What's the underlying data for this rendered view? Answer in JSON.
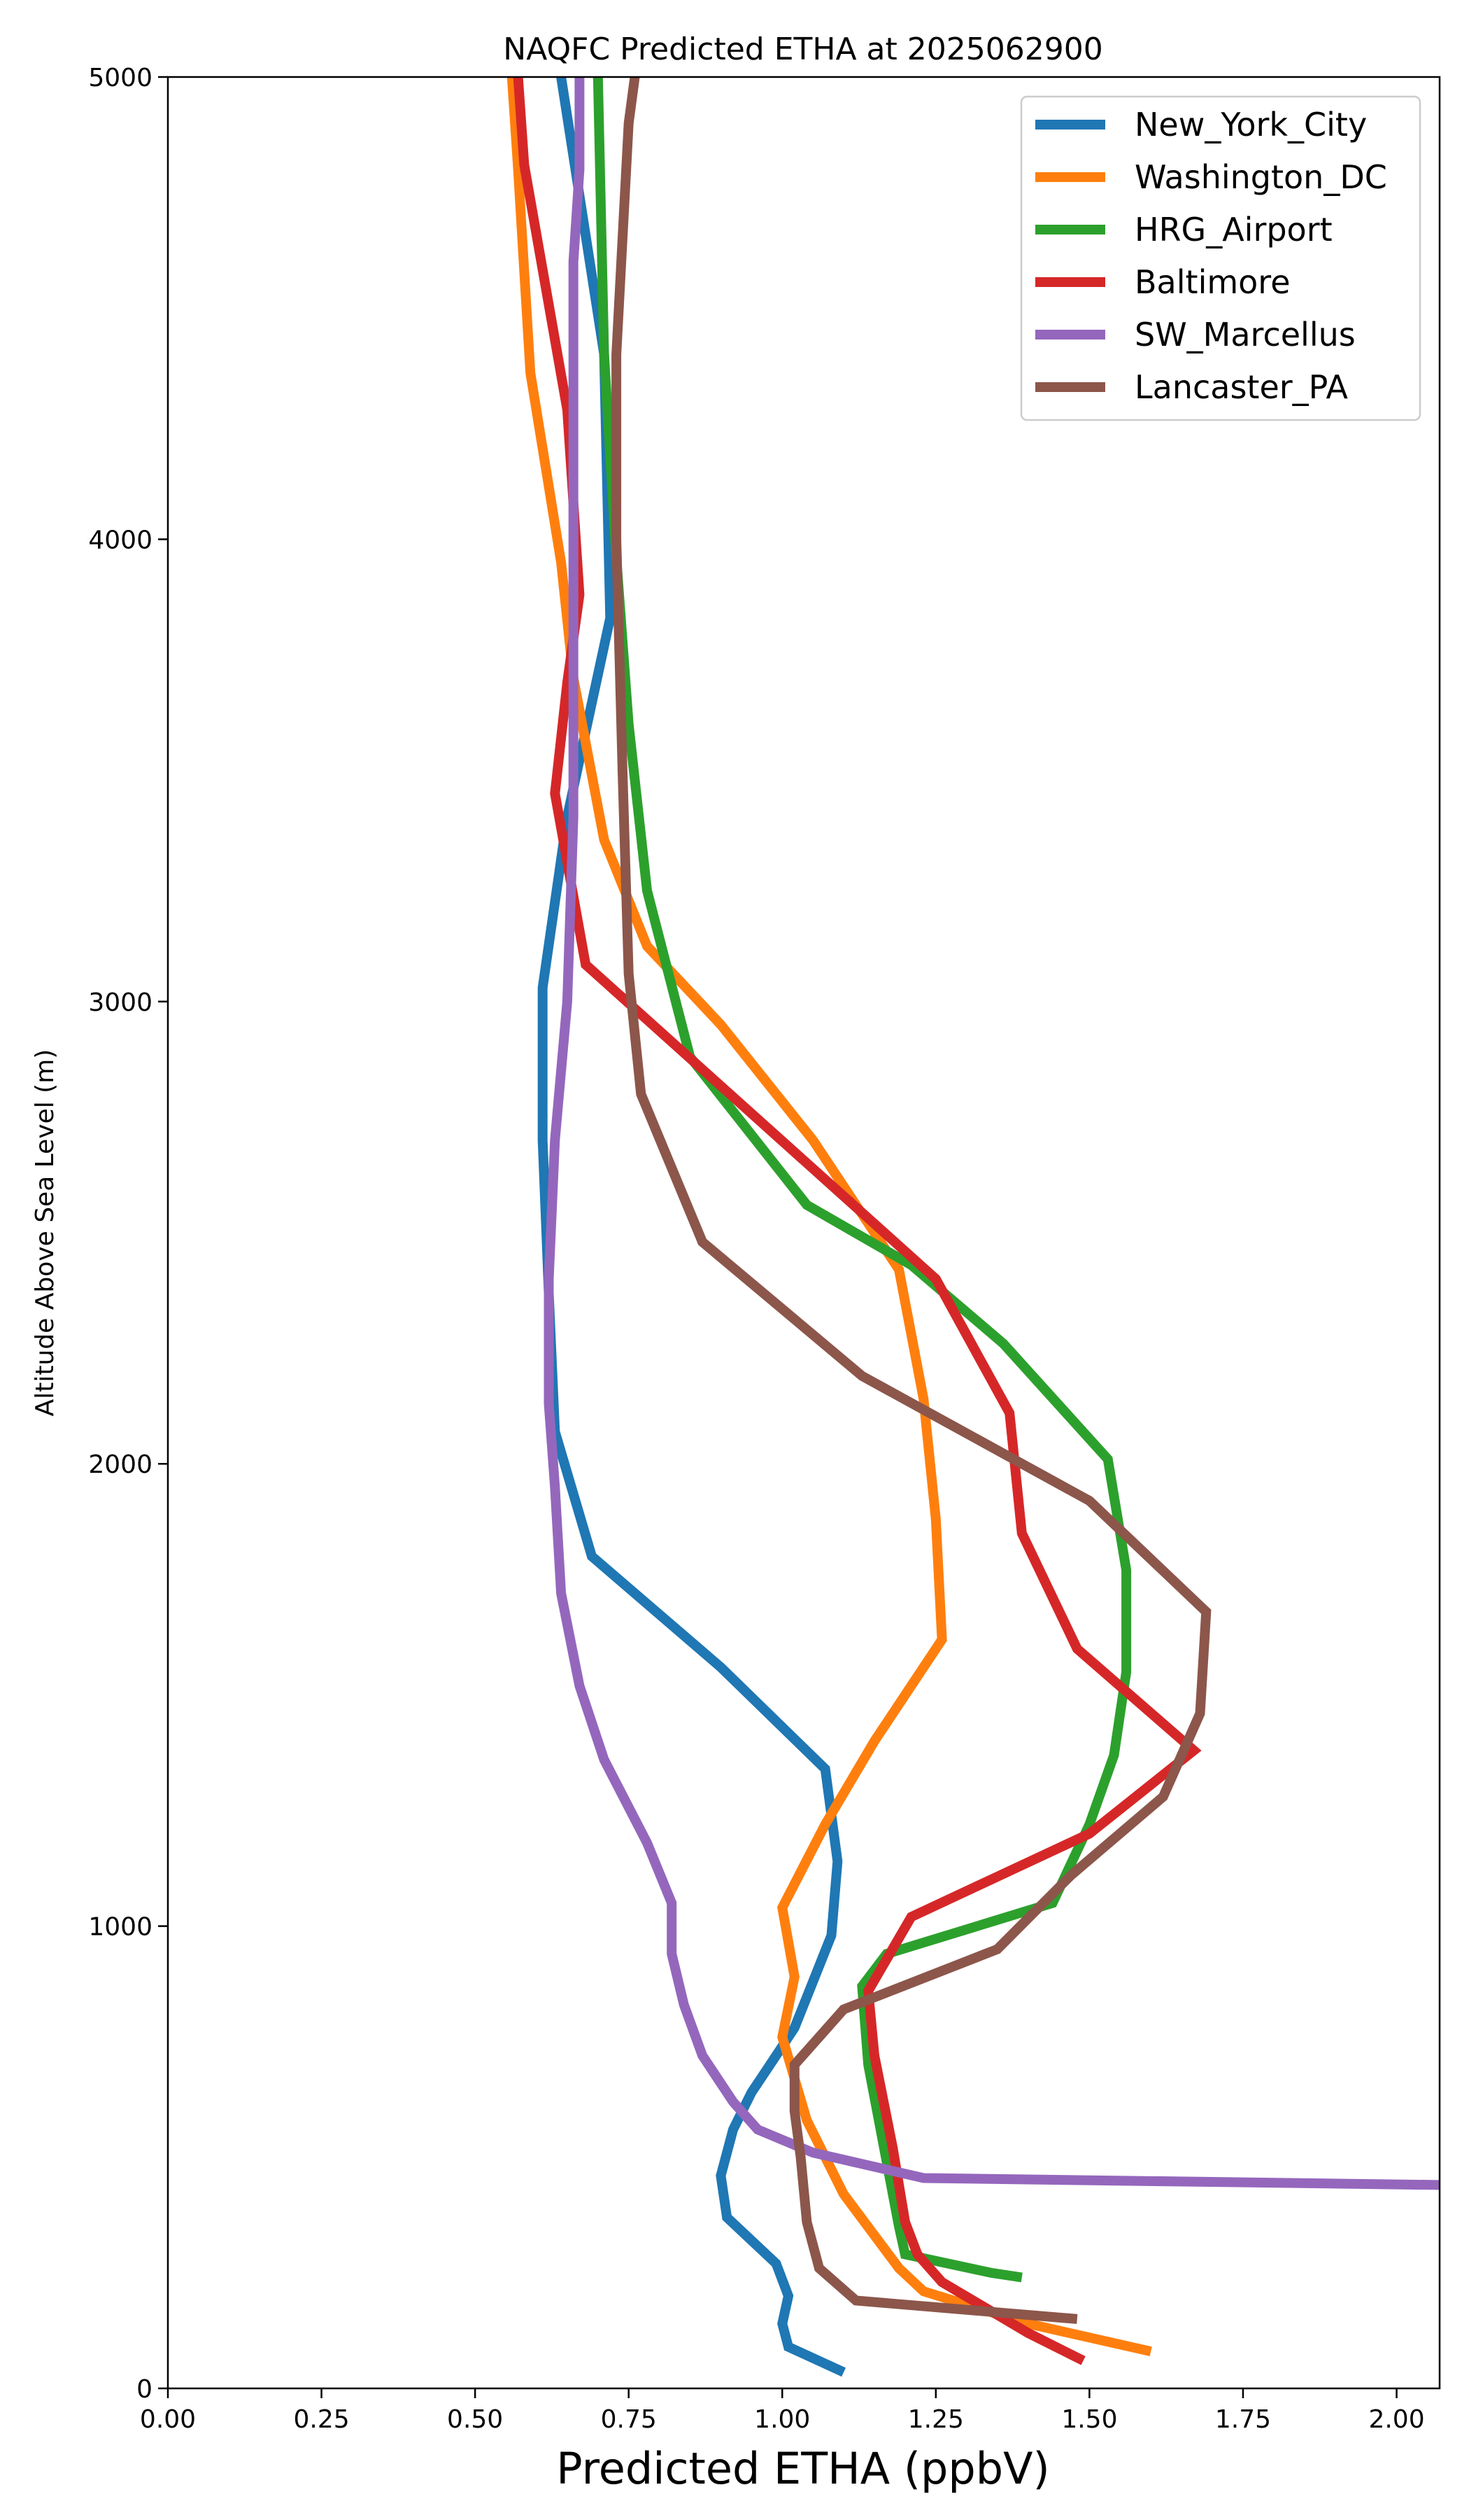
{
  "chart_data": {
    "type": "line",
    "title": "NAQFC Predicted ETHA at 2025062900",
    "xlabel": "Predicted ETHA (ppbV)",
    "ylabel": "Altitude Above Sea Level (m)",
    "xlim": [
      0.0,
      2.07
    ],
    "ylim": [
      0,
      5000
    ],
    "xticks": [
      "0.00",
      "0.25",
      "0.50",
      "0.75",
      "1.00",
      "1.25",
      "1.50",
      "1.75",
      "2.00"
    ],
    "yticks": [
      "0",
      "1000",
      "2000",
      "3000",
      "4000",
      "5000"
    ],
    "legend_position": "top-right",
    "grid": false,
    "series": [
      {
        "name": "New_York_City",
        "color": "#1f77b4",
        "points": [
          [
            1.1,
            35
          ],
          [
            1.01,
            90
          ],
          [
            1.0,
            140
          ],
          [
            1.01,
            200
          ],
          [
            0.99,
            270
          ],
          [
            0.91,
            370
          ],
          [
            0.9,
            460
          ],
          [
            0.92,
            560
          ],
          [
            0.95,
            640
          ],
          [
            0.98,
            700
          ],
          [
            1.02,
            780
          ],
          [
            1.05,
            880
          ],
          [
            1.08,
            980
          ],
          [
            1.09,
            1140
          ],
          [
            1.07,
            1340
          ],
          [
            0.9,
            1560
          ],
          [
            0.69,
            1800
          ],
          [
            0.63,
            2070
          ],
          [
            0.62,
            2370
          ],
          [
            0.61,
            2700
          ],
          [
            0.61,
            3030
          ],
          [
            0.65,
            3400
          ],
          [
            0.72,
            3830
          ],
          [
            0.71,
            4400
          ],
          [
            0.64,
            5000
          ]
        ]
      },
      {
        "name": "Washington_DC",
        "color": "#ff7f0e",
        "points": [
          [
            1.6,
            80
          ],
          [
            1.4,
            140
          ],
          [
            1.23,
            210
          ],
          [
            1.19,
            260
          ],
          [
            1.1,
            420
          ],
          [
            1.04,
            580
          ],
          [
            1.0,
            760
          ],
          [
            1.02,
            890
          ],
          [
            1.0,
            1040
          ],
          [
            1.07,
            1220
          ],
          [
            1.15,
            1400
          ],
          [
            1.26,
            1620
          ],
          [
            1.25,
            1880
          ],
          [
            1.23,
            2140
          ],
          [
            1.19,
            2420
          ],
          [
            1.05,
            2700
          ],
          [
            0.9,
            2950
          ],
          [
            0.78,
            3120
          ],
          [
            0.71,
            3350
          ],
          [
            0.66,
            3700
          ],
          [
            0.64,
            3950
          ],
          [
            0.59,
            4360
          ],
          [
            0.57,
            4800
          ],
          [
            0.56,
            5000
          ]
        ]
      },
      {
        "name": "HRG_Airport",
        "color": "#2ca02c",
        "points": [
          [
            1.39,
            240
          ],
          [
            1.34,
            250
          ],
          [
            1.2,
            290
          ],
          [
            1.19,
            350
          ],
          [
            1.16,
            560
          ],
          [
            1.14,
            700
          ],
          [
            1.13,
            870
          ],
          [
            1.17,
            940
          ],
          [
            1.44,
            1050
          ],
          [
            1.5,
            1220
          ],
          [
            1.54,
            1370
          ],
          [
            1.56,
            1550
          ],
          [
            1.56,
            1770
          ],
          [
            1.53,
            2010
          ],
          [
            1.36,
            2260
          ],
          [
            1.21,
            2430
          ],
          [
            1.04,
            2560
          ],
          [
            0.85,
            2880
          ],
          [
            0.78,
            3240
          ],
          [
            0.75,
            3600
          ],
          [
            0.73,
            3960
          ],
          [
            0.71,
            4400
          ],
          [
            0.7,
            5000
          ]
        ]
      },
      {
        "name": "Baltimore",
        "color": "#d62728",
        "points": [
          [
            1.49,
            60
          ],
          [
            1.4,
            120
          ],
          [
            1.26,
            230
          ],
          [
            1.22,
            290
          ],
          [
            1.2,
            360
          ],
          [
            1.18,
            520
          ],
          [
            1.15,
            720
          ],
          [
            1.14,
            860
          ],
          [
            1.21,
            1020
          ],
          [
            1.5,
            1200
          ],
          [
            1.67,
            1380
          ],
          [
            1.48,
            1600
          ],
          [
            1.39,
            1850
          ],
          [
            1.37,
            2110
          ],
          [
            1.25,
            2400
          ],
          [
            0.68,
            3080
          ],
          [
            0.63,
            3450
          ],
          [
            0.65,
            3690
          ],
          [
            0.67,
            3880
          ],
          [
            0.65,
            4280
          ],
          [
            0.58,
            4810
          ],
          [
            0.57,
            5000
          ]
        ]
      },
      {
        "name": "SW_Marcellus",
        "color": "#9467bd",
        "points": [
          [
            2.07,
            440
          ],
          [
            1.23,
            455
          ],
          [
            1.05,
            510
          ],
          [
            0.96,
            560
          ],
          [
            0.92,
            620
          ],
          [
            0.87,
            720
          ],
          [
            0.84,
            830
          ],
          [
            0.82,
            940
          ],
          [
            0.82,
            1050
          ],
          [
            0.78,
            1180
          ],
          [
            0.71,
            1360
          ],
          [
            0.67,
            1520
          ],
          [
            0.64,
            1720
          ],
          [
            0.63,
            1950
          ],
          [
            0.62,
            2130
          ],
          [
            0.62,
            2400
          ],
          [
            0.63,
            2700
          ],
          [
            0.65,
            3000
          ],
          [
            0.66,
            3400
          ],
          [
            0.66,
            3800
          ],
          [
            0.66,
            4230
          ],
          [
            0.66,
            4600
          ],
          [
            0.67,
            4800
          ],
          [
            0.67,
            5000
          ]
        ]
      },
      {
        "name": "Lancaster_PA",
        "color": "#8c564b",
        "points": [
          [
            1.48,
            150
          ],
          [
            1.12,
            190
          ],
          [
            1.06,
            260
          ],
          [
            1.04,
            360
          ],
          [
            1.03,
            500
          ],
          [
            1.02,
            600
          ],
          [
            1.02,
            700
          ],
          [
            1.1,
            820
          ],
          [
            1.35,
            950
          ],
          [
            1.47,
            1110
          ],
          [
            1.62,
            1280
          ],
          [
            1.68,
            1460
          ],
          [
            1.69,
            1680
          ],
          [
            1.5,
            1920
          ],
          [
            1.13,
            2190
          ],
          [
            0.87,
            2480
          ],
          [
            0.77,
            2800
          ],
          [
            0.75,
            3060
          ],
          [
            0.74,
            3500
          ],
          [
            0.73,
            4000
          ],
          [
            0.73,
            4400
          ],
          [
            0.75,
            4900
          ],
          [
            0.76,
            5000
          ]
        ]
      }
    ]
  }
}
